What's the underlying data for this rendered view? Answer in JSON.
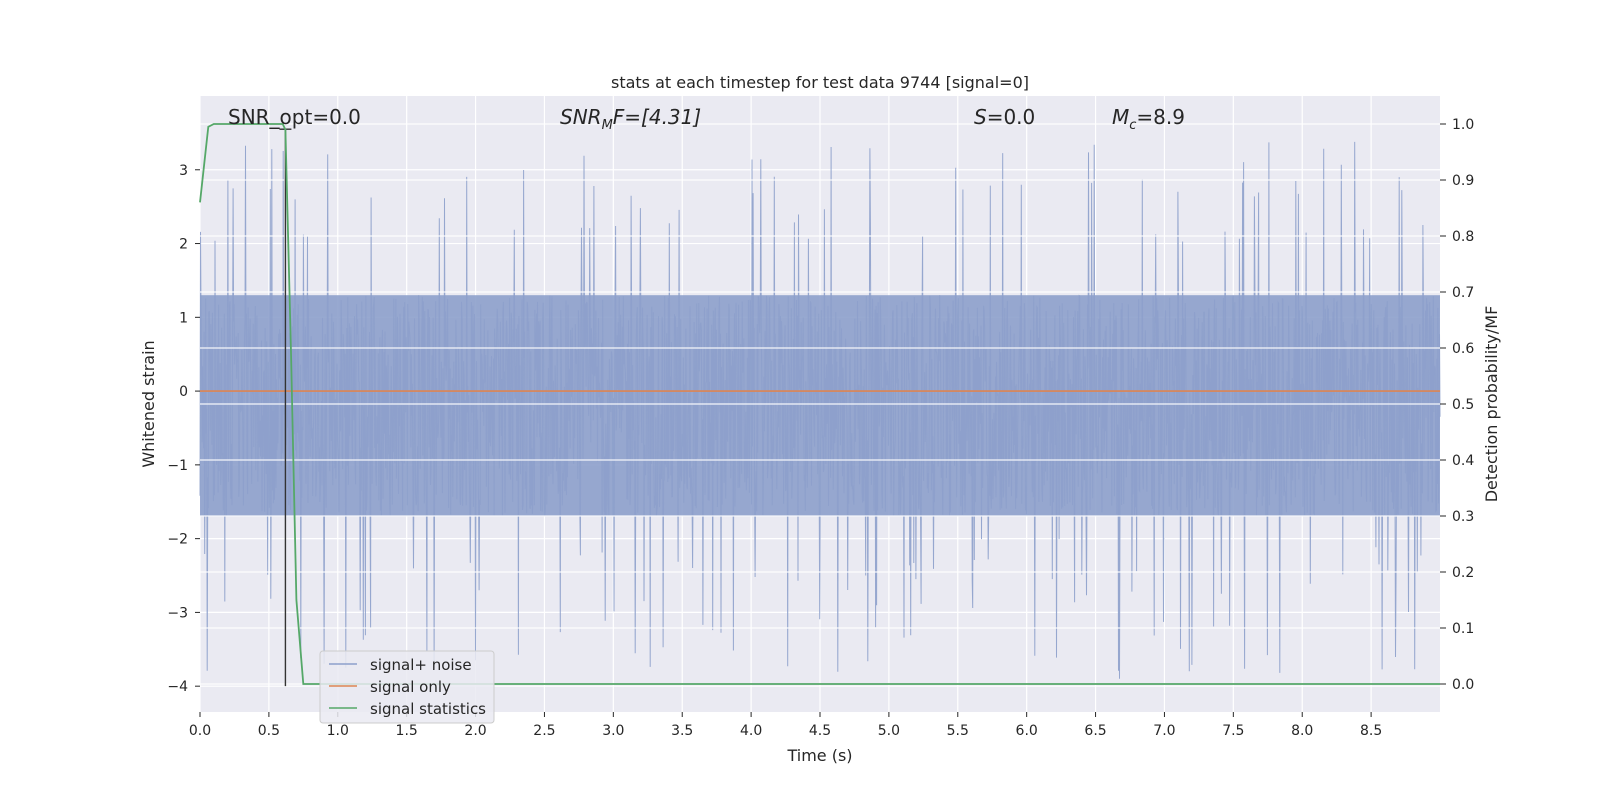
{
  "chart_data": {
    "type": "line",
    "title": "stats at each timestep for test data 9744 [signal=0]",
    "xlabel": "Time (s)",
    "ylabel": "Whitened strain",
    "y2label": "Detection probability/MF",
    "xlim": [
      0.0,
      9.0
    ],
    "ylim": [
      -4.35,
      4.0
    ],
    "y2lim": [
      -0.05,
      1.05
    ],
    "xticks": [
      "0.0",
      "0.5",
      "1.0",
      "1.5",
      "2.0",
      "2.5",
      "3.0",
      "3.5",
      "4.0",
      "4.5",
      "5.0",
      "5.5",
      "6.0",
      "6.5",
      "7.0",
      "7.5",
      "8.0",
      "8.5"
    ],
    "xtick_values": [
      0.0,
      0.5,
      1.0,
      1.5,
      2.0,
      2.5,
      3.0,
      3.5,
      4.0,
      4.5,
      5.0,
      5.5,
      6.0,
      6.5,
      7.0,
      7.5,
      8.0,
      8.5
    ],
    "yticks": [
      "3",
      "2",
      "1",
      "0",
      "−1",
      "−2",
      "−3",
      "−4"
    ],
    "ytick_values": [
      3,
      2,
      1,
      0,
      -1,
      -2,
      -3,
      -4
    ],
    "y2ticks": [
      "1.0",
      "0.9",
      "0.8",
      "0.7",
      "0.6",
      "0.5",
      "0.4",
      "0.3",
      "0.2",
      "0.1",
      "0.0"
    ],
    "y2tick_values": [
      1.0,
      0.9,
      0.8,
      0.7,
      0.6,
      0.5,
      0.4,
      0.3,
      0.2,
      0.1,
      0.0
    ],
    "grid": true,
    "legend_position": "lower-left",
    "annotations": {
      "snr_opt": "SNR_opt=0.0",
      "snr_mf_main": "SNR",
      "snr_mf_sub": "M",
      "snr_mf_rest": "F=[4.31]",
      "s_main": "S",
      "s_rest": "=0.0",
      "mc_main": "M",
      "mc_sub": "c",
      "mc_rest": "=8.9"
    },
    "marker": {
      "x": 0.62,
      "y_low": -4.0,
      "y_high": 3.55
    },
    "series": [
      {
        "name": "signal+ noise",
        "color": "#8da0cb",
        "noise_band": [
          -1.7,
          1.3
        ],
        "duration": 9.0
      },
      {
        "name": "signal only",
        "color": "#dd8452",
        "x": [
          0.0,
          9.0
        ],
        "y": [
          0.0,
          0.0
        ]
      },
      {
        "name": "signal statistics",
        "color": "#55a868",
        "axis": "right",
        "x": [
          0.0,
          0.06,
          0.1,
          0.2,
          0.5,
          0.6,
          0.62,
          0.66,
          0.7,
          0.75,
          1.0,
          9.0
        ],
        "y": [
          0.86,
          0.995,
          1.0,
          1.0,
          1.0,
          1.0,
          0.99,
          0.6,
          0.15,
          0.0,
          0.0,
          0.0
        ]
      }
    ]
  }
}
